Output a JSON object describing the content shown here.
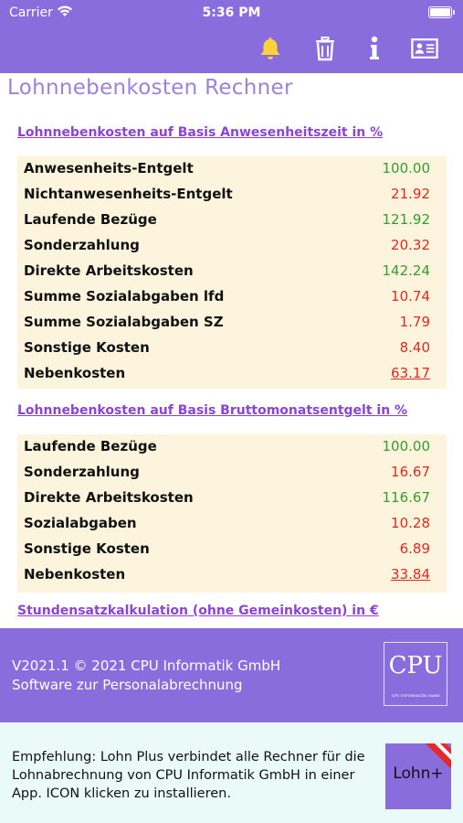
{
  "status_bar": {
    "carrier": "Carrier",
    "time": "5:36 PM"
  },
  "toolbar": {
    "icons": [
      "bell-icon",
      "trash-icon",
      "info-icon",
      "id-card-icon"
    ],
    "bell_color": "#ffd23a"
  },
  "app_title": "Lohnnebenkosten Rechner",
  "section1": {
    "title": "Lohnnebenkosten auf Basis Anwesenheitszeit in %",
    "rows": [
      {
        "label": "Anwesenheits-Entgelt",
        "value": "100.00",
        "color": "green",
        "underline": false
      },
      {
        "label": "Nichtanwesenheits-Entgelt",
        "value": "21.92",
        "color": "red",
        "underline": false
      },
      {
        "label": "Laufende Bezüge",
        "value": "121.92",
        "color": "green",
        "underline": false
      },
      {
        "label": "Sonderzahlung",
        "value": "20.32",
        "color": "red",
        "underline": false
      },
      {
        "label": "Direkte Arbeitskosten",
        "value": "142.24",
        "color": "green",
        "underline": false
      },
      {
        "label": "Summe Sozialabgaben lfd",
        "value": "10.74",
        "color": "red",
        "underline": false
      },
      {
        "label": "Summe Sozialabgaben SZ",
        "value": "1.79",
        "color": "red",
        "underline": false
      },
      {
        "label": "Sonstige Kosten",
        "value": "8.40",
        "color": "red",
        "underline": false
      },
      {
        "label": "Nebenkosten",
        "value": "63.17",
        "color": "red",
        "underline": true
      }
    ]
  },
  "section2": {
    "title": "Lohnnebenkosten auf Basis Bruttomonatsentgelt in %",
    "rows": [
      {
        "label": "Laufende Bezüge",
        "value": "100.00",
        "color": "green",
        "underline": false
      },
      {
        "label": "Sonderzahlung",
        "value": "16.67",
        "color": "red",
        "underline": false
      },
      {
        "label": "Direkte Arbeitskosten",
        "value": "116.67",
        "color": "green",
        "underline": false
      },
      {
        "label": "Sozialabgaben",
        "value": "10.28",
        "color": "red",
        "underline": false
      },
      {
        "label": "Sonstige Kosten",
        "value": "6.89",
        "color": "red",
        "underline": false
      },
      {
        "label": "Nebenkosten",
        "value": "33.84",
        "color": "red",
        "underline": true
      }
    ]
  },
  "section3": {
    "title": "Stundensatzkalkulation (ohne Gemeinkosten) in €"
  },
  "footer": {
    "version_line": "V2021.1 © 2021 CPU Informatik GmbH",
    "subtitle": "Software zur Personalabrechnung",
    "logo_text": "CPU",
    "logo_subtext": "CPU INFORMATIK GmbH"
  },
  "promo": {
    "text": "Empfehlung: Lohn Plus verbindet alle Rechner für die Lohnabrechnung von CPU Informatik GmbH in einer App. ICON klicken zu installieren.",
    "icon_label": "Lohn+"
  }
}
